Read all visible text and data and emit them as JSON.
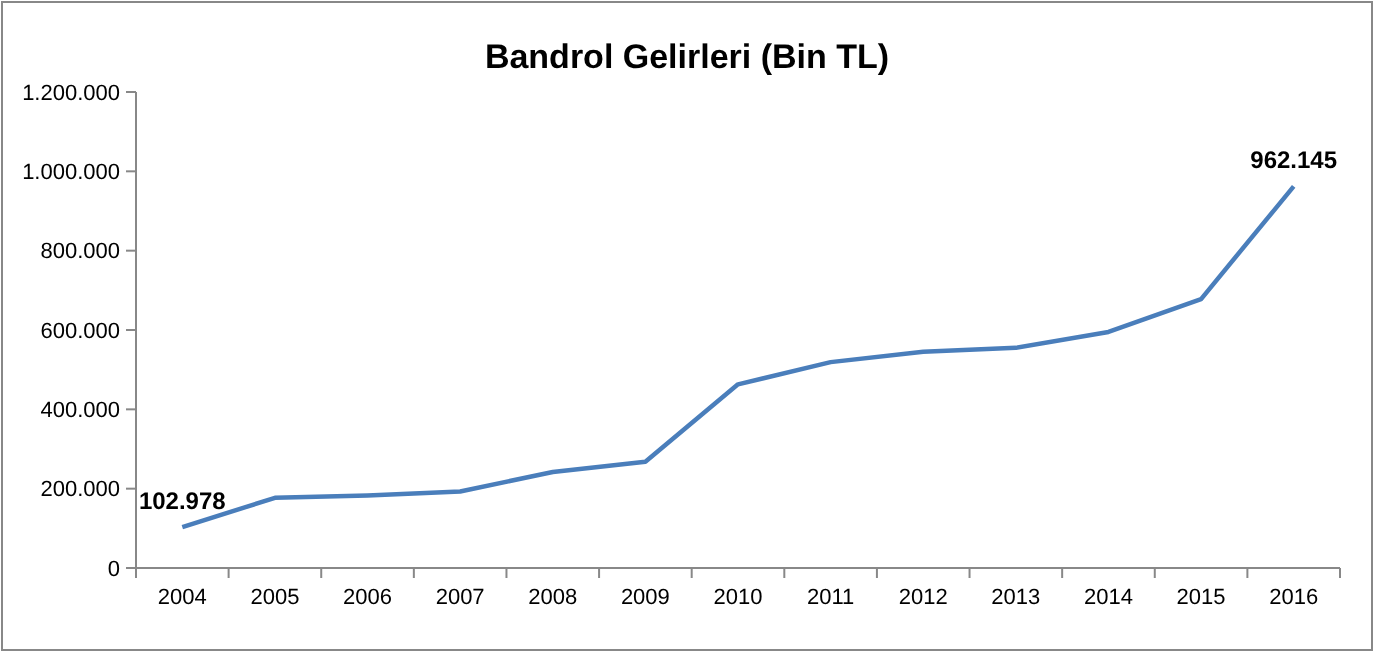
{
  "chart_data": {
    "type": "line",
    "title": "Bandrol Gelirleri (Bin TL)",
    "categories": [
      "2004",
      "2005",
      "2006",
      "2007",
      "2008",
      "2009",
      "2010",
      "2011",
      "2012",
      "2013",
      "2014",
      "2015",
      "2016"
    ],
    "series": [
      {
        "color": "#4a7ebb",
        "values": [
          102978,
          177000,
          183000,
          193000,
          242000,
          268000,
          463000,
          519000,
          545000,
          555000,
          595000,
          678000,
          962145
        ],
        "value_labels": [
          "102.978",
          null,
          null,
          null,
          null,
          null,
          null,
          null,
          null,
          null,
          null,
          null,
          "962.145"
        ]
      }
    ],
    "ylim": [
      0,
      1200000
    ],
    "yticks": [
      0,
      {
        "value": 200000,
        "label": "200.000"
      },
      {
        "value": 400000,
        "label": "400.000"
      },
      {
        "value": 600000,
        "label": "600.000"
      },
      {
        "value": 800000,
        "label": "800.000"
      },
      {
        "value": 1000000,
        "label": "1.000.000"
      },
      {
        "value": 1200000,
        "label": "1.200.000"
      }
    ],
    "grid": false,
    "marker": "none",
    "line_style": "solid"
  }
}
